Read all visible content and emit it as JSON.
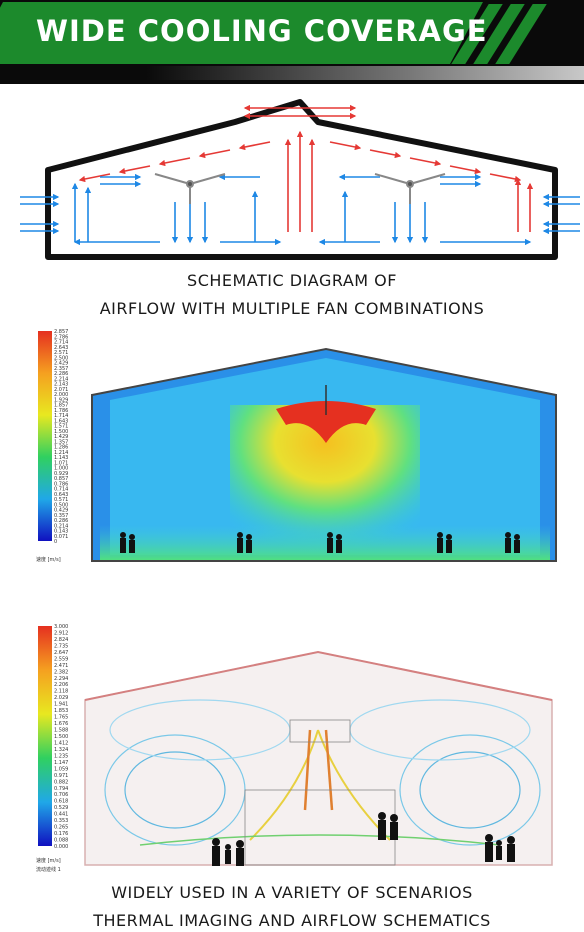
{
  "banner": {
    "title": "WIDE COOLING COVERAGE"
  },
  "section1": {
    "caption_line1": "SCHEMATIC DIAGRAM OF",
    "caption_line2": "AIRFLOW WITH MULTIPLE FAN COMBINATIONS"
  },
  "section2": {
    "legend_values": [
      "2.857",
      "2.786",
      "2.714",
      "2.643",
      "2.571",
      "2.500",
      "2.429",
      "2.357",
      "2.286",
      "2.214",
      "2.143",
      "2.071",
      "2.000",
      "1.929",
      "1.857",
      "1.786",
      "1.714",
      "1.643",
      "1.571",
      "1.500",
      "1.429",
      "1.357",
      "1.286",
      "1.214",
      "1.143",
      "1.071",
      "1.000",
      "0.929",
      "0.857",
      "0.786",
      "0.714",
      "0.643",
      "0.571",
      "0.500",
      "0.429",
      "0.357",
      "0.286",
      "0.214",
      "0.143",
      "0.071",
      "0"
    ],
    "legend_unit": "速度 [m/s]"
  },
  "section3": {
    "legend_values": [
      "3.000",
      "2.912",
      "2.824",
      "2.735",
      "2.647",
      "2.559",
      "2.471",
      "2.382",
      "2.294",
      "2.206",
      "2.118",
      "2.029",
      "1.941",
      "1.853",
      "1.765",
      "1.676",
      "1.588",
      "1.500",
      "1.412",
      "1.324",
      "1.235",
      "1.147",
      "1.059",
      "0.971",
      "0.882",
      "0.794",
      "0.706",
      "0.618",
      "0.529",
      "0.441",
      "0.353",
      "0.265",
      "0.176",
      "0.088",
      "0.000"
    ],
    "legend_unit": "速度 [m/s]",
    "legend_sub": "流动迹线 1",
    "caption_line1": "WIDELY USED IN A VARIETY OF SCENARIOS",
    "caption_line2": "THERMAL IMAGING AND AIRFLOW SCHEMATICS"
  },
  "colors": {
    "brand_green": "#1c8a2c",
    "hot_arrow": "#e53935",
    "cool_arrow": "#1e88e5"
  }
}
